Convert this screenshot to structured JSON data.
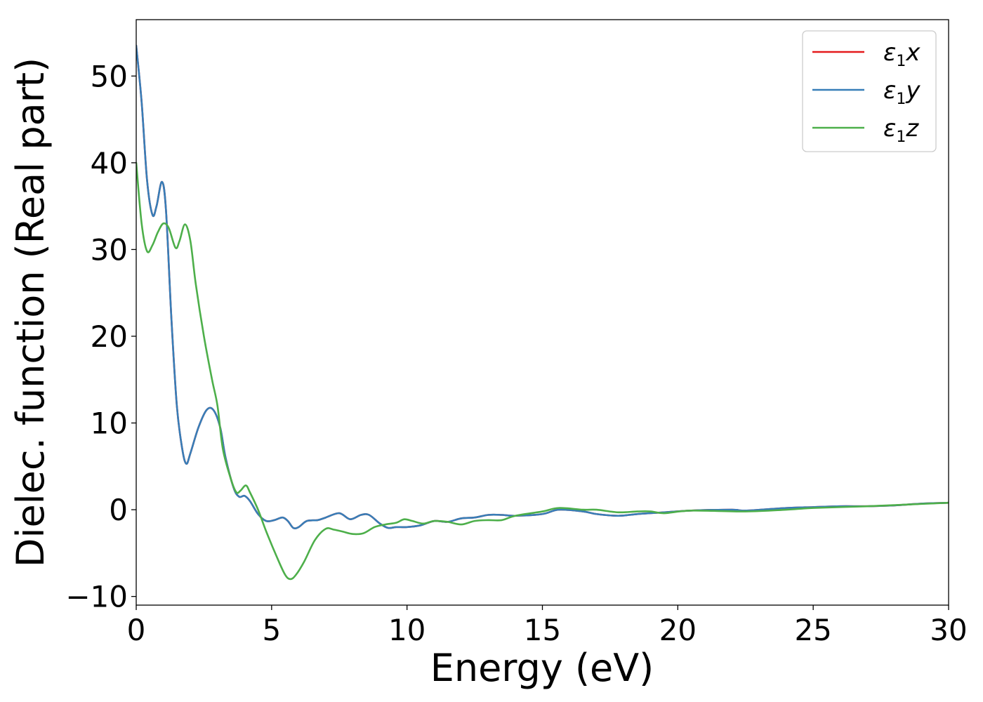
{
  "chart_data": {
    "type": "line",
    "xlabel": "Energy (eV)",
    "ylabel": "Dielec. function (Real part)",
    "xlim": [
      0,
      30
    ],
    "ylim": [
      -11,
      56.5
    ],
    "xticks": [
      0,
      5,
      10,
      15,
      20,
      25,
      30
    ],
    "xtick_labels": [
      "0",
      "5",
      "10",
      "15",
      "20",
      "25",
      "30"
    ],
    "yticks": [
      -10,
      0,
      10,
      20,
      30,
      40,
      50
    ],
    "ytick_labels": [
      "−10",
      "0",
      "10",
      "20",
      "30",
      "40",
      "50"
    ],
    "grid": false,
    "legend_position": "top-right",
    "series": [
      {
        "name": "ε1x",
        "label_main": "ε",
        "label_sub": "1",
        "label_suffix": "x",
        "color": "#e41a1c",
        "x": [
          0,
          0.2,
          0.4,
          0.6,
          0.75,
          0.95,
          1.1,
          1.3,
          1.5,
          1.7,
          1.85,
          2.0,
          2.3,
          2.6,
          2.85,
          3.1,
          3.3,
          3.6,
          3.8,
          4.0,
          4.2,
          4.5,
          4.8,
          5.1,
          5.4,
          5.6,
          5.8,
          6.0,
          6.3,
          6.7,
          7.0,
          7.5,
          7.9,
          8.3,
          8.6,
          9.0,
          9.3,
          9.6,
          10.0,
          10.5,
          11.0,
          11.5,
          12.0,
          12.5,
          13.0,
          13.5,
          14.0,
          15.0,
          15.6,
          16.5,
          17.0,
          17.8,
          18.5,
          19.5,
          20.5,
          22.0,
          22.5,
          24.0,
          25.0,
          26.0,
          27.0,
          28.0,
          29.0,
          30.0
        ],
        "y": [
          53.5,
          47.0,
          38.0,
          34.0,
          35.0,
          37.8,
          34.5,
          22.0,
          12.0,
          7.0,
          5.3,
          6.5,
          9.5,
          11.5,
          11.5,
          9.5,
          6.0,
          2.5,
          1.5,
          1.6,
          1.0,
          -0.5,
          -1.3,
          -1.2,
          -0.9,
          -1.3,
          -2.1,
          -2.0,
          -1.3,
          -1.2,
          -0.9,
          -0.4,
          -1.1,
          -0.6,
          -0.6,
          -1.6,
          -2.1,
          -2.0,
          -2.0,
          -1.8,
          -1.3,
          -1.4,
          -1.0,
          -0.9,
          -0.6,
          -0.6,
          -0.7,
          -0.5,
          0.0,
          -0.2,
          -0.5,
          -0.7,
          -0.5,
          -0.3,
          -0.1,
          0.0,
          -0.1,
          0.2,
          0.3,
          0.4,
          0.4,
          0.5,
          0.7,
          0.8
        ]
      },
      {
        "name": "ε1y",
        "label_main": "ε",
        "label_sub": "1",
        "label_suffix": "y",
        "color": "#377eb8",
        "x": [
          0,
          0.2,
          0.4,
          0.6,
          0.75,
          0.95,
          1.1,
          1.3,
          1.5,
          1.7,
          1.85,
          2.0,
          2.3,
          2.6,
          2.85,
          3.1,
          3.3,
          3.6,
          3.8,
          4.0,
          4.2,
          4.5,
          4.8,
          5.1,
          5.4,
          5.6,
          5.8,
          6.0,
          6.3,
          6.7,
          7.0,
          7.5,
          7.9,
          8.3,
          8.6,
          9.0,
          9.3,
          9.6,
          10.0,
          10.5,
          11.0,
          11.5,
          12.0,
          12.5,
          13.0,
          13.5,
          14.0,
          15.0,
          15.6,
          16.5,
          17.0,
          17.8,
          18.5,
          19.5,
          20.5,
          22.0,
          22.5,
          24.0,
          25.0,
          26.0,
          27.0,
          28.0,
          29.0,
          30.0
        ],
        "y": [
          53.5,
          47.0,
          38.0,
          34.0,
          35.0,
          37.8,
          34.5,
          22.0,
          12.0,
          7.0,
          5.3,
          6.5,
          9.5,
          11.5,
          11.5,
          9.5,
          6.0,
          2.5,
          1.5,
          1.6,
          1.0,
          -0.5,
          -1.3,
          -1.2,
          -0.9,
          -1.3,
          -2.1,
          -2.0,
          -1.3,
          -1.2,
          -0.9,
          -0.4,
          -1.1,
          -0.6,
          -0.6,
          -1.6,
          -2.1,
          -2.0,
          -2.0,
          -1.8,
          -1.3,
          -1.4,
          -1.0,
          -0.9,
          -0.6,
          -0.6,
          -0.7,
          -0.5,
          0.0,
          -0.2,
          -0.5,
          -0.7,
          -0.5,
          -0.3,
          -0.1,
          0.0,
          -0.1,
          0.2,
          0.3,
          0.4,
          0.4,
          0.5,
          0.7,
          0.8
        ]
      },
      {
        "name": "ε1z",
        "label_main": "ε",
        "label_sub": "1",
        "label_suffix": "z",
        "color": "#4daf4a",
        "x": [
          0,
          0.2,
          0.4,
          0.6,
          0.8,
          1.0,
          1.2,
          1.45,
          1.6,
          1.8,
          2.0,
          2.2,
          2.5,
          2.8,
          3.0,
          3.2,
          3.5,
          3.7,
          3.85,
          4.05,
          4.2,
          4.5,
          4.8,
          5.2,
          5.5,
          5.7,
          5.9,
          6.2,
          6.6,
          7.0,
          7.3,
          7.6,
          8.0,
          8.4,
          8.8,
          9.2,
          9.6,
          9.9,
          10.2,
          10.6,
          11.0,
          11.5,
          12.0,
          12.5,
          13.0,
          13.5,
          14.0,
          15.0,
          15.6,
          16.5,
          17.0,
          17.8,
          18.5,
          19.0,
          19.5,
          20.5,
          22.5,
          24.0,
          25.0,
          27.0,
          28.5,
          30.0
        ],
        "y": [
          40.0,
          33.0,
          29.8,
          30.5,
          32.0,
          33.0,
          32.5,
          30.2,
          31.0,
          32.9,
          31.0,
          26.0,
          20.0,
          15.0,
          12.0,
          7.0,
          3.5,
          2.0,
          2.2,
          2.8,
          2.0,
          0.0,
          -2.5,
          -5.5,
          -7.5,
          -8.0,
          -7.5,
          -6.0,
          -3.5,
          -2.2,
          -2.3,
          -2.5,
          -2.8,
          -2.7,
          -2.0,
          -1.7,
          -1.5,
          -1.1,
          -1.3,
          -1.6,
          -1.3,
          -1.4,
          -1.7,
          -1.3,
          -1.2,
          -1.2,
          -0.7,
          -0.2,
          0.2,
          0.0,
          0.0,
          -0.3,
          -0.2,
          -0.2,
          -0.4,
          -0.1,
          -0.2,
          0.0,
          0.2,
          0.4,
          0.6,
          0.8
        ]
      }
    ]
  }
}
